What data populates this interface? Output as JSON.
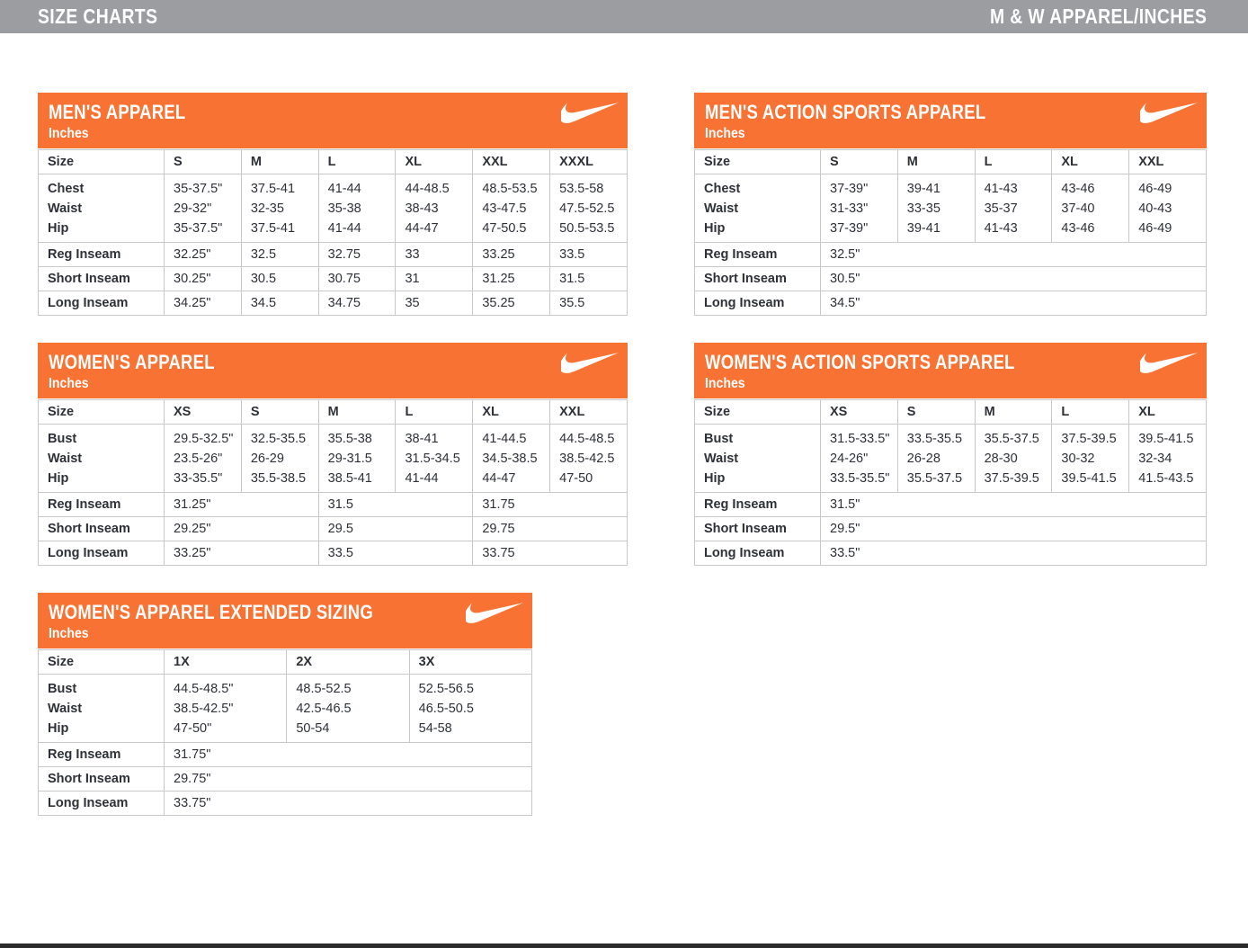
{
  "header": {
    "left_title": "SIZE CHARTS",
    "right_title": "M & W APPAREL/INCHES"
  },
  "icons": {
    "brand": "nike-swoosh-icon"
  },
  "colors": {
    "accent_orange": "#F87333",
    "topbar_gray": "#9B9DA1",
    "text_dark": "#2E3138",
    "grid_border": "#C9C9C9",
    "footer_bar": "#2B2B2B",
    "banner_text": "#FFFFFF"
  },
  "tables": [
    {
      "title": "MEN'S APPAREL",
      "subtitle": "Inches",
      "size_header": "Size",
      "sizes": [
        "S",
        "M",
        "L",
        "XL",
        "XXL",
        "XXXL"
      ],
      "measurements": [
        {
          "label": "Chest",
          "values": [
            "35-37.5\"",
            "37.5-41",
            "41-44",
            "44-48.5",
            "48.5-53.5",
            "53.5-58"
          ]
        },
        {
          "label": "Waist",
          "values": [
            "29-32\"",
            "32-35",
            "35-38",
            "38-43",
            "43-47.5",
            "47.5-52.5"
          ]
        },
        {
          "label": "Hip",
          "values": [
            "35-37.5\"",
            "37.5-41",
            "41-44",
            "44-47",
            "47-50.5",
            "50.5-53.5"
          ]
        }
      ],
      "inseams": [
        {
          "label": "Reg Inseam",
          "values": [
            "32.25\"",
            "32.5",
            "32.75",
            "33",
            "33.25",
            "33.5"
          ]
        },
        {
          "label": "Short Inseam",
          "values": [
            "30.25\"",
            "30.5",
            "30.75",
            "31",
            "31.25",
            "31.5"
          ]
        },
        {
          "label": "Long Inseam",
          "values": [
            "34.25\"",
            "34.5",
            "34.75",
            "35",
            "35.25",
            "35.5"
          ]
        }
      ]
    },
    {
      "title": "MEN'S ACTION SPORTS APPAREL",
      "subtitle": "Inches",
      "size_header": "Size",
      "sizes": [
        "S",
        "M",
        "L",
        "XL",
        "XXL"
      ],
      "measurements": [
        {
          "label": "Chest",
          "values": [
            "37-39\"",
            "39-41",
            "41-43",
            "43-46",
            "46-49"
          ]
        },
        {
          "label": "Waist",
          "values": [
            "31-33\"",
            "33-35",
            "35-37",
            "37-40",
            "40-43"
          ]
        },
        {
          "label": "Hip",
          "values": [
            "37-39\"",
            "39-41",
            "41-43",
            "43-46",
            "46-49"
          ]
        }
      ],
      "inseams": [
        {
          "label": "Reg Inseam",
          "values": [
            "32.5\""
          ]
        },
        {
          "label": "Short Inseam",
          "values": [
            "30.5\""
          ]
        },
        {
          "label": "Long Inseam",
          "values": [
            "34.5\""
          ]
        }
      ]
    },
    {
      "title": "WOMEN'S APPAREL",
      "subtitle": "Inches",
      "size_header": "Size",
      "sizes": [
        "XS",
        "S",
        "M",
        "L",
        "XL",
        "XXL"
      ],
      "measurements": [
        {
          "label": "Bust",
          "values": [
            "29.5-32.5\"",
            "32.5-35.5",
            "35.5-38",
            "38-41",
            "41-44.5",
            "44.5-48.5"
          ]
        },
        {
          "label": "Waist",
          "values": [
            "23.5-26\"",
            "26-29",
            "29-31.5",
            "31.5-34.5",
            "34.5-38.5",
            "38.5-42.5"
          ]
        },
        {
          "label": "Hip",
          "values": [
            "33-35.5\"",
            "35.5-38.5",
            "38.5-41",
            "41-44",
            "44-47",
            "47-50"
          ]
        }
      ],
      "inseams": [
        {
          "label": "Reg Inseam",
          "values": [
            "31.25\"",
            "31.5",
            "31.75"
          ]
        },
        {
          "label": "Short Inseam",
          "values": [
            "29.25\"",
            "29.5",
            "29.75"
          ]
        },
        {
          "label": "Long Inseam",
          "values": [
            "33.25\"",
            "33.5",
            "33.75"
          ]
        }
      ]
    },
    {
      "title": "WOMEN'S ACTION SPORTS APPAREL",
      "subtitle": "Inches",
      "size_header": "Size",
      "sizes": [
        "XS",
        "S",
        "M",
        "L",
        "XL"
      ],
      "measurements": [
        {
          "label": "Bust",
          "values": [
            "31.5-33.5\"",
            "33.5-35.5",
            "35.5-37.5",
            "37.5-39.5",
            "39.5-41.5"
          ]
        },
        {
          "label": "Waist",
          "values": [
            "24-26\"",
            "26-28",
            "28-30",
            "30-32",
            "32-34"
          ]
        },
        {
          "label": "Hip",
          "values": [
            "33.5-35.5\"",
            "35.5-37.5",
            "37.5-39.5",
            "39.5-41.5",
            "41.5-43.5"
          ]
        }
      ],
      "inseams": [
        {
          "label": "Reg Inseam",
          "values": [
            "31.5\""
          ]
        },
        {
          "label": "Short Inseam",
          "values": [
            "29.5\""
          ]
        },
        {
          "label": "Long Inseam",
          "values": [
            "33.5\""
          ]
        }
      ]
    },
    {
      "title": "WOMEN'S APPAREL EXTENDED SIZING",
      "subtitle": "Inches",
      "size_header": "Size",
      "sizes": [
        "1X",
        "2X",
        "3X"
      ],
      "measurements": [
        {
          "label": "Bust",
          "values": [
            "44.5-48.5\"",
            "48.5-52.5",
            "52.5-56.5"
          ]
        },
        {
          "label": "Waist",
          "values": [
            "38.5-42.5\"",
            "42.5-46.5",
            "46.5-50.5"
          ]
        },
        {
          "label": "Hip",
          "values": [
            "47-50\"",
            "50-54",
            "54-58"
          ]
        }
      ],
      "inseams": [
        {
          "label": "Reg Inseam",
          "values": [
            "31.75\""
          ]
        },
        {
          "label": "Short Inseam",
          "values": [
            "29.75\""
          ]
        },
        {
          "label": "Long Inseam",
          "values": [
            "33.75\""
          ]
        }
      ]
    }
  ]
}
